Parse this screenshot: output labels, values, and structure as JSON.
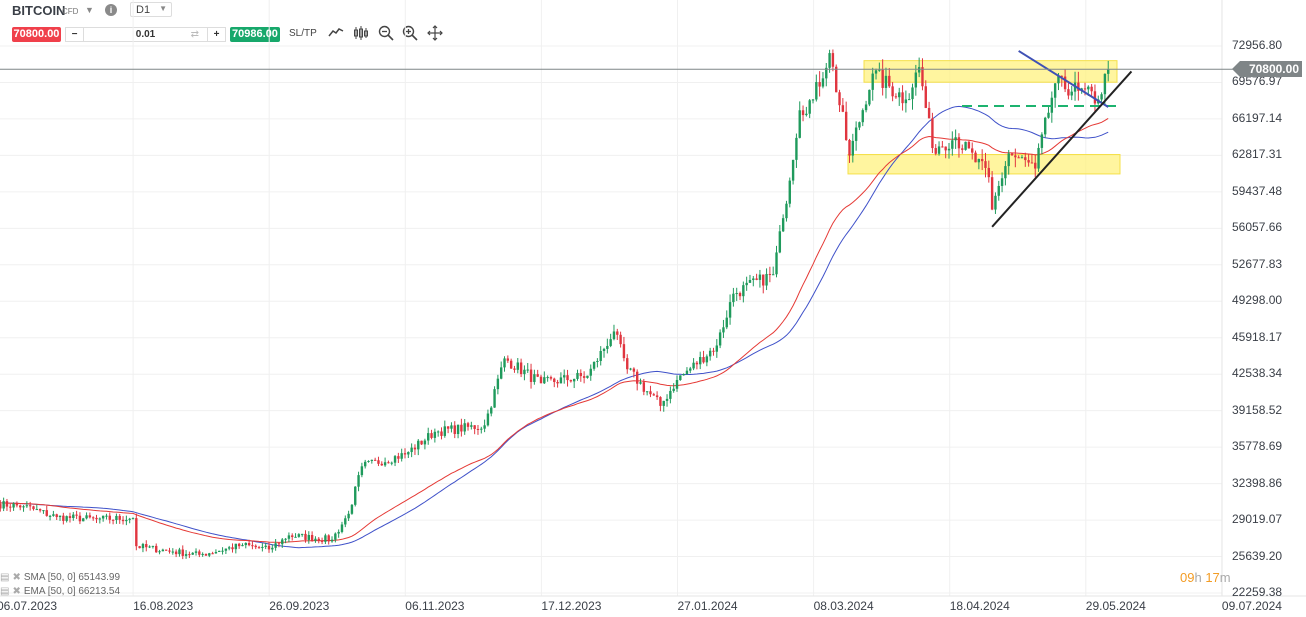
{
  "toolbar": {
    "symbol": "BITCOIN",
    "symbol_type": "CFD",
    "timeframe": "D1",
    "sell_price": "70800.00",
    "buy_price": "70986.00",
    "volume": "0.01",
    "minus": "−",
    "plus": "+",
    "sltp_label": "SL/TP",
    "icons": [
      "line-chart-icon",
      "candlestick-icon",
      "zoom-out-icon",
      "zoom-in-icon",
      "crosshair-move-icon"
    ]
  },
  "legend": {
    "sma": "SMA [50, 0] 65143.99",
    "ema": "EMA [50, 0] 66213.54"
  },
  "countdown": {
    "hours": "09",
    "h": "h",
    "minutes": "17",
    "m": "m"
  },
  "colors": {
    "up": "#1f9a5c",
    "down": "#e0353f",
    "sma": "#3f51c9",
    "ema": "#e53935",
    "zone": "#fff176",
    "trend_up": "#222222",
    "trend_down": "#3f51b5",
    "level": "#1db36f"
  },
  "chart_data": {
    "type": "candlestick",
    "symbol": "BITCOIN",
    "timeframe": "D1",
    "last_price": "70800.00",
    "y_ticks": [
      "72956.80",
      "69576.97",
      "66197.14",
      "62817.31",
      "59437.48",
      "56057.66",
      "52677.83",
      "49298.00",
      "45918.17",
      "42538.34",
      "39158.52",
      "35778.69",
      "32398.86",
      "29019.07",
      "25639.20",
      "22259.38"
    ],
    "ylim": [
      22259.38,
      72956.8
    ],
    "x_ticks": [
      "06.07.2023",
      "16.08.2023",
      "26.09.2023",
      "06.11.2023",
      "17.12.2023",
      "27.01.2024",
      "08.03.2024",
      "18.04.2024",
      "29.05.2024",
      "09.07.2024"
    ],
    "close_anchors": [
      [
        "2023-07-06",
        30500
      ],
      [
        "2023-07-14",
        30300
      ],
      [
        "2023-07-24",
        29300
      ],
      [
        "2023-08-05",
        29100
      ],
      [
        "2023-08-16",
        29200
      ],
      [
        "2023-08-17",
        26600
      ],
      [
        "2023-08-28",
        26100
      ],
      [
        "2023-09-05",
        25800
      ],
      [
        "2023-09-18",
        26700
      ],
      [
        "2023-09-26",
        26300
      ],
      [
        "2023-10-02",
        27600
      ],
      [
        "2023-10-15",
        27200
      ],
      [
        "2023-10-20",
        29600
      ],
      [
        "2023-10-24",
        34000
      ],
      [
        "2023-11-06",
        35100
      ],
      [
        "2023-11-15",
        37200
      ],
      [
        "2023-11-30",
        37800
      ],
      [
        "2023-12-06",
        44000
      ],
      [
        "2023-12-17",
        41700
      ],
      [
        "2023-12-31",
        42400
      ],
      [
        "2024-01-08",
        46500
      ],
      [
        "2024-01-12",
        43000
      ],
      [
        "2024-01-22",
        39600
      ],
      [
        "2024-01-27",
        42000
      ],
      [
        "2024-02-08",
        45200
      ],
      [
        "2024-02-13",
        50000
      ],
      [
        "2024-02-25",
        51800
      ],
      [
        "2024-02-28",
        57000
      ],
      [
        "2024-03-04",
        67000
      ],
      [
        "2024-03-08",
        68000
      ],
      [
        "2024-03-13",
        72300
      ],
      [
        "2024-03-19",
        62800
      ],
      [
        "2024-03-26",
        70400
      ],
      [
        "2024-04-05",
        68000
      ],
      [
        "2024-04-09",
        71000
      ],
      [
        "2024-04-13",
        63500
      ],
      [
        "2024-04-20",
        64500
      ],
      [
        "2024-04-30",
        60800
      ],
      [
        "2024-05-01",
        57800
      ],
      [
        "2024-05-06",
        63000
      ],
      [
        "2024-05-14",
        61600
      ],
      [
        "2024-05-20",
        69500
      ],
      [
        "2024-05-27",
        68800
      ],
      [
        "2024-06-02",
        68000
      ],
      [
        "2024-06-05",
        70800
      ]
    ],
    "indicators": [
      {
        "name": "SMA [50, 0]",
        "period": 50,
        "last": 65143.99
      },
      {
        "name": "EMA [50, 0]",
        "period": 50,
        "last": 66213.54
      }
    ],
    "drawings": {
      "resistance_zone": [
        69600,
        71600
      ],
      "support_zone": [
        61100,
        62900
      ],
      "level_dashed": 67400,
      "trendline_down": [
        [
          "2024-05-09",
          72500
        ],
        [
          "2024-06-05",
          67300
        ]
      ],
      "trendline_up": [
        [
          "2024-05-01",
          56200
        ],
        [
          "2024-06-12",
          70600
        ]
      ]
    }
  }
}
